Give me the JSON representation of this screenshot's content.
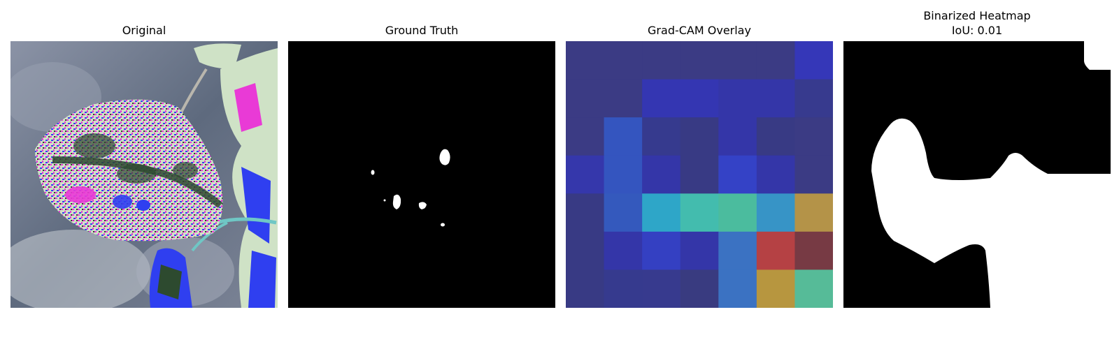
{
  "panels": [
    {
      "title": "Original"
    },
    {
      "title": "Ground Truth"
    },
    {
      "title": "Grad-CAM Overlay"
    },
    {
      "title": "Binarized Heatmap",
      "subtitle": "IoU: 0.01"
    }
  ],
  "colors": {
    "background": "#ffffff",
    "mask_foreground": "#ffffff",
    "mask_background": "#000000",
    "leaf_pale": "#cfe2c6",
    "leaf_magenta": "#e93ad6",
    "leaf_blue": "#2f3ff0",
    "leaf_dark": "#2d4a2f",
    "sky_grey": "#7a8294"
  },
  "gradcam_colors": [
    [
      "#3b3b84",
      "#3b3b84",
      "#3b3b84",
      "#3b3b84",
      "#3b3b84",
      "#3b3b84",
      "#3537b8"
    ],
    [
      "#3b3b84",
      "#3b3b84",
      "#3436b2",
      "#3436b2",
      "#3436a8",
      "#3436a8",
      "#373a8e"
    ],
    [
      "#3b3b84",
      "#3455bf",
      "#363a8e",
      "#383a84",
      "#3436a8",
      "#383a84",
      "#3b3b84"
    ],
    [
      "#3537ab",
      "#3455bf",
      "#3436a8",
      "#383a84",
      "#3442c6",
      "#3436a8",
      "#3b3b84"
    ],
    [
      "#383a84",
      "#3459bd",
      "#2ea6c8",
      "#43bcae",
      "#4bbc9e",
      "#3794c6",
      "#b49348"
    ],
    [
      "#383a84",
      "#3436a8",
      "#3440c2",
      "#3436a8",
      "#3b72c2",
      "#b54144",
      "#773a44"
    ],
    [
      "#383a84",
      "#363a8e",
      "#373a8e",
      "#393b80",
      "#3b72c2",
      "#b7963f",
      "#56bb98"
    ]
  ]
}
